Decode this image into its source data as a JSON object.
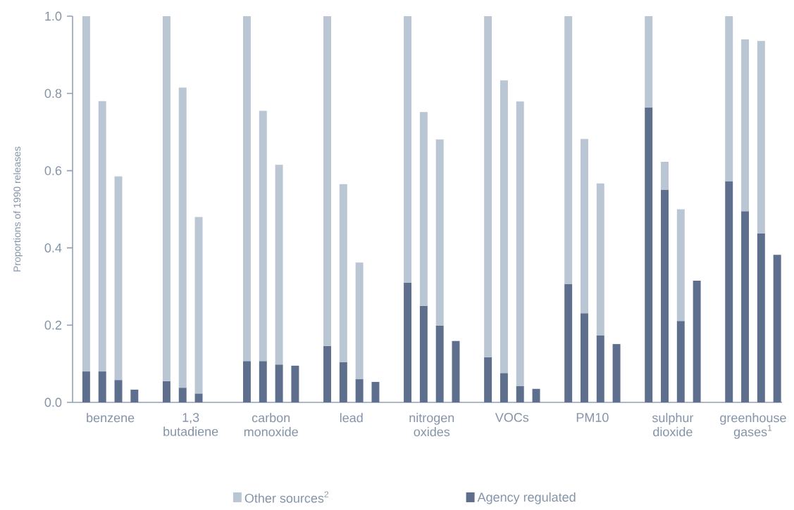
{
  "chart_data": {
    "type": "bar",
    "stacked": true,
    "ylabel": "Proportions of 1990 releases",
    "ylim": [
      0,
      1
    ],
    "yticks": [
      {
        "value": 0,
        "label": "0.0"
      },
      0.2,
      0.4,
      0.6,
      0.8,
      {
        "value": 1,
        "label": "1.0"
      }
    ],
    "legend": "bottom",
    "categories": [
      null,
      "benzene",
      null,
      null,
      null,
      null,
      "1,3 butadiene",
      null,
      null,
      null,
      null,
      "carbon monoxide",
      null,
      null,
      null,
      null,
      "lead",
      null,
      null,
      null,
      null,
      "nitrogen oxides",
      null,
      null,
      null,
      null,
      "VOCs",
      null,
      null,
      null,
      null,
      "PM10",
      null,
      null,
      null,
      null,
      "sulphur dioxide",
      null,
      null,
      null,
      null,
      "greenhouse gases$^{1}$",
      null,
      null
    ],
    "series": [
      {
        "name": "Agency regulated",
        "color": "#5e6f8e",
        "values": [
          0.08,
          0.08,
          0.058,
          0.033,
          null,
          0.055,
          0.038,
          0.023,
          null,
          null,
          0.107,
          0.107,
          0.098,
          0.095,
          null,
          0.146,
          0.104,
          0.06,
          0.053,
          null,
          0.31,
          0.25,
          0.199,
          0.159,
          null,
          0.117,
          0.076,
          0.042,
          0.035,
          null,
          0.306,
          0.231,
          0.173,
          0.151,
          null,
          0.763,
          0.55,
          0.211,
          0.315,
          null,
          0.573,
          0.495,
          0.437,
          0.382
        ]
      },
      {
        "name": "Other sources$^{2}$",
        "color": "#bac6d3",
        "values": [
          0.92,
          0.7,
          0.527,
          null,
          null,
          0.945,
          0.777,
          0.457,
          null,
          null,
          0.893,
          0.648,
          0.517,
          null,
          null,
          0.854,
          0.461,
          0.302,
          null,
          null,
          0.69,
          0.502,
          0.482,
          null,
          null,
          0.883,
          0.758,
          0.737,
          null,
          null,
          0.694,
          0.451,
          0.394,
          null,
          null,
          0.237,
          0.073,
          0.289,
          null,
          null,
          0.427,
          0.445,
          0.499,
          null
        ]
      }
    ]
  }
}
